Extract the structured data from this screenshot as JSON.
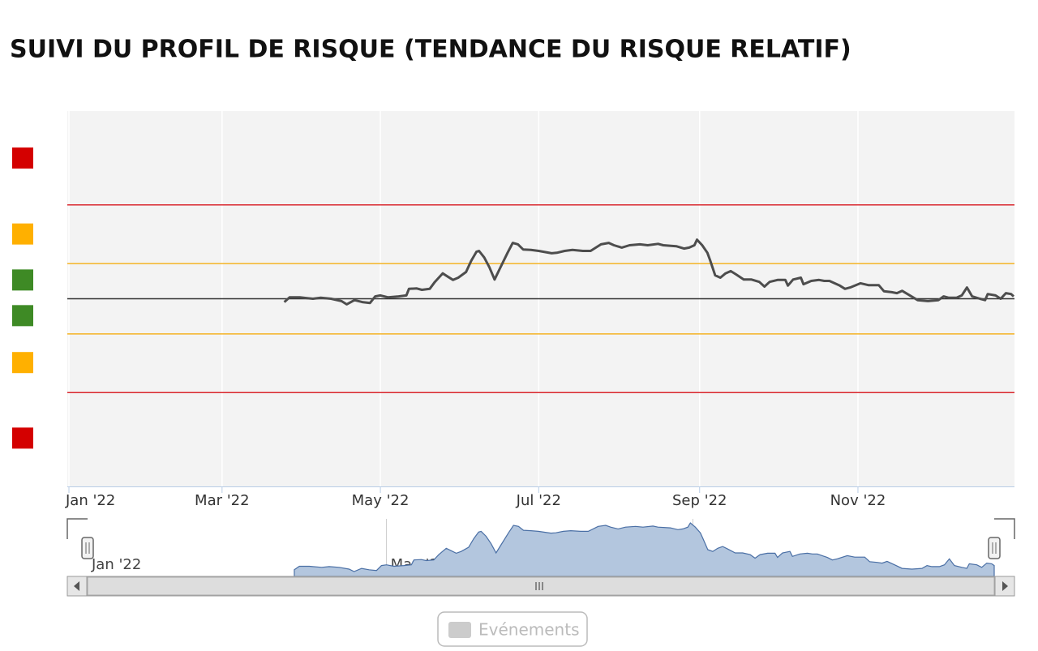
{
  "chart_data": {
    "type": "line",
    "title": "SUIVI DU PROFIL DE RISQUE (TENDANCE DU RISQUE RELATIF)",
    "xlim": [
      0,
      364
    ],
    "xticks": [
      {
        "value": 0,
        "label": "Jan '22"
      },
      {
        "value": 59,
        "label": "Mar '22"
      },
      {
        "value": 120,
        "label": "May '22"
      },
      {
        "value": 181,
        "label": "Jul '22"
      },
      {
        "value": 243,
        "label": "Sep '22"
      },
      {
        "value": 304,
        "label": "Nov '22"
      }
    ],
    "ylim": [
      -4,
      4
    ],
    "grid": true,
    "x": [
      83,
      85,
      89,
      94,
      97,
      101,
      105,
      107,
      110,
      113,
      116,
      118,
      120,
      123,
      127,
      130,
      131,
      134,
      136,
      139,
      141,
      144,
      146,
      148,
      150,
      153,
      155,
      157,
      158,
      160,
      162,
      164,
      166,
      169,
      171,
      173,
      175,
      178,
      181,
      186,
      188,
      191,
      194,
      198,
      201,
      205,
      208,
      210,
      213,
      216,
      220,
      223,
      227,
      229,
      234,
      237,
      239,
      241,
      242,
      244,
      246,
      247,
      249,
      251,
      253,
      255,
      257,
      260,
      263,
      266,
      268,
      270,
      273,
      276,
      277,
      279,
      282,
      283,
      286,
      289,
      291,
      293,
      297,
      299,
      301,
      305,
      308,
      312,
      314,
      317,
      319,
      321,
      324,
      327,
      331,
      335,
      337,
      339,
      342,
      344,
      346,
      348,
      351,
      353,
      354,
      357,
      359,
      361,
      363,
      364
    ],
    "series": [
      {
        "color": "#4d4d4d",
        "values": [
          -0.07,
          0.03,
          0.03,
          0,
          0.02,
          0,
          -0.05,
          -0.12,
          -0.03,
          -0.07,
          -0.09,
          0.05,
          0.07,
          0.03,
          0.05,
          0.07,
          0.21,
          0.22,
          0.19,
          0.21,
          0.36,
          0.54,
          0.47,
          0.4,
          0.45,
          0.57,
          0.81,
          1.0,
          1.02,
          0.88,
          0.67,
          0.41,
          0.64,
          0.98,
          1.19,
          1.16,
          1.05,
          1.04,
          1.02,
          0.97,
          0.98,
          1.02,
          1.04,
          1.02,
          1.02,
          1.16,
          1.19,
          1.14,
          1.09,
          1.14,
          1.16,
          1.14,
          1.17,
          1.14,
          1.12,
          1.07,
          1.09,
          1.14,
          1.26,
          1.14,
          0.98,
          0.83,
          0.5,
          0.45,
          0.54,
          0.59,
          0.52,
          0.41,
          0.41,
          0.36,
          0.26,
          0.36,
          0.4,
          0.4,
          0.28,
          0.41,
          0.45,
          0.31,
          0.38,
          0.4,
          0.38,
          0.38,
          0.28,
          0.21,
          0.24,
          0.33,
          0.29,
          0.29,
          0.16,
          0.14,
          0.12,
          0.17,
          0.07,
          -0.03,
          -0.05,
          -0.03,
          0.05,
          0.02,
          0.02,
          0.07,
          0.24,
          0.05,
          0,
          -0.03,
          0.1,
          0.07,
          0,
          0.12,
          0.1,
          0.05
        ]
      }
    ],
    "reference_lines": [
      {
        "value": 2,
        "color": "#d9262c"
      },
      {
        "value": 0.75,
        "color": "#f5b324"
      },
      {
        "value": 0,
        "color": "#333333"
      },
      {
        "value": -0.75,
        "color": "#f5b324"
      },
      {
        "value": -2,
        "color": "#d9262c"
      }
    ],
    "zone_markers": [
      {
        "value": 3,
        "color": "#d40000"
      },
      {
        "value": 1.38,
        "color": "#ffb000"
      },
      {
        "value": 0.4,
        "color": "#3e8a25"
      },
      {
        "value": -0.36,
        "color": "#3e8a25"
      },
      {
        "value": -1.36,
        "color": "#ffb000"
      },
      {
        "value": -2.97,
        "color": "#d40000"
      }
    ],
    "navigator_color": "#b3c6de",
    "events_legend": "Evénements"
  }
}
